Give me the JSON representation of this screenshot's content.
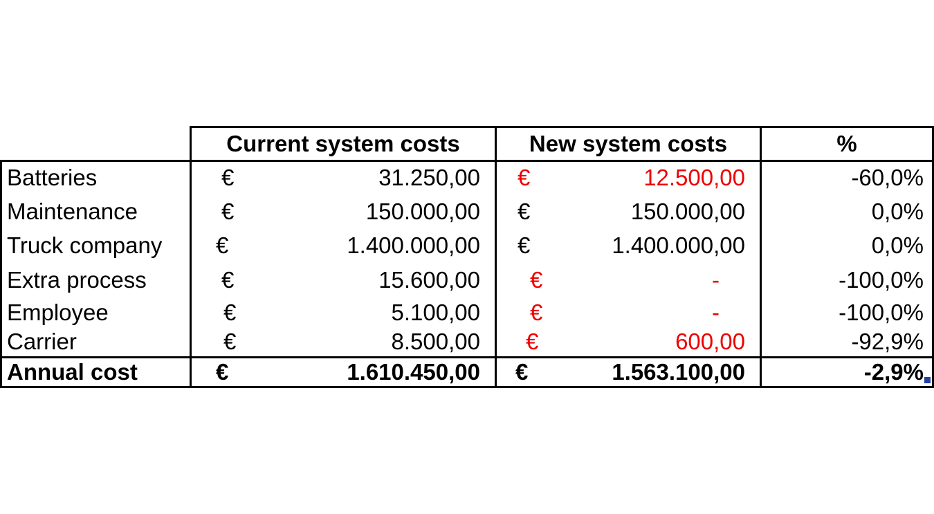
{
  "table": {
    "headers": {
      "current": "Current system costs",
      "new": "New system costs",
      "percent": "%"
    },
    "rows": [
      {
        "label": "Batteries",
        "cur_sym": "€",
        "cur_val": "31.250,00",
        "new_sym": "€",
        "new_val": "12.500,00",
        "pct": "-60,0%"
      },
      {
        "label": "Maintenance",
        "cur_sym": "€",
        "cur_val": "150.000,00",
        "new_sym": "€",
        "new_val": "150.000,00",
        "pct": "0,0%"
      },
      {
        "label": "Truck company",
        "cur_sym": "€",
        "cur_val": "1.400.000,00",
        "new_sym": "€",
        "new_val": "1.400.000,00",
        "pct": "0,0%"
      },
      {
        "label": "Extra process",
        "cur_sym": "€",
        "cur_val": "15.600,00",
        "new_sym": "€",
        "new_val": "-",
        "pct": "-100,0%"
      },
      {
        "label": "Employee",
        "cur_sym": "€",
        "cur_val": "5.100,00",
        "new_sym": "€",
        "new_val": "-",
        "pct": "-100,0%"
      },
      {
        "label": "Carrier",
        "cur_sym": "€",
        "cur_val": "8.500,00",
        "new_sym": "€",
        "new_val": "600,00",
        "pct": "-92,9%"
      }
    ],
    "total": {
      "label": "Annual cost",
      "cur_sym": "€",
      "cur_val": "1.610.450,00",
      "new_sym": "€",
      "new_val": "1.563.100,00",
      "pct": "-2,9%"
    },
    "colors": {
      "text": "#000000",
      "highlight": "#ee0000",
      "selection_handle": "#2540a8"
    }
  }
}
